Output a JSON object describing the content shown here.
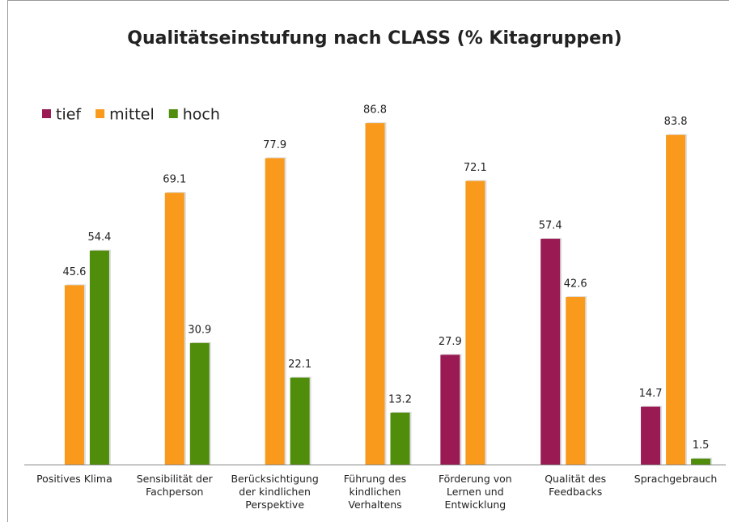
{
  "chart_data": {
    "type": "bar",
    "title": "Qualitätseinstufung nach CLASS (% Kitagruppen)",
    "categories": [
      "Positives Klima",
      "Sensibilität der Fachperson",
      "Berücksichtigung der kindlichen Perspektive",
      "Führung des kindlichen Verhaltens",
      "Förderung von Lernen und Entwicklung",
      "Qualität des Feedbacks",
      "Sprachgebrauch"
    ],
    "series": [
      {
        "name": "tief",
        "color": "#9a1a54",
        "values": [
          null,
          null,
          null,
          null,
          27.9,
          57.4,
          14.7
        ]
      },
      {
        "name": "mittel",
        "color": "#f99a1c",
        "values": [
          45.6,
          69.1,
          77.9,
          86.8,
          72.1,
          42.6,
          83.8
        ]
      },
      {
        "name": "hoch",
        "color": "#4f8d0b",
        "values": [
          54.4,
          30.9,
          22.1,
          13.2,
          null,
          null,
          1.5
        ]
      }
    ],
    "ylim": [
      0,
      100
    ],
    "legend": "top-left",
    "grid": false
  }
}
